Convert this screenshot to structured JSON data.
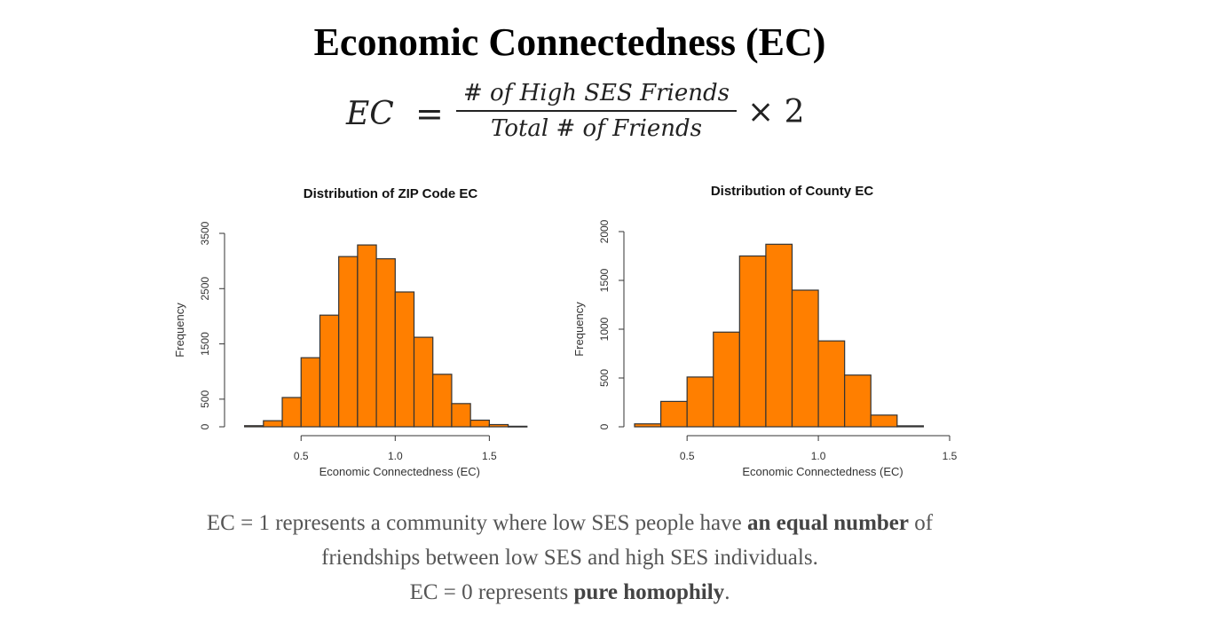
{
  "header": {
    "title": "Economic Connectedness (EC)"
  },
  "formula": {
    "lhs": "EC",
    "equals": "=",
    "numerator": "# of High SES Friends",
    "denominator": "Total # of Friends",
    "multiplier": "× 2"
  },
  "colors": {
    "bar_fill": "#ff7f00",
    "bar_stroke": "#333333"
  },
  "chart_data": [
    {
      "type": "bar",
      "title": "Distribution of ZIP Code EC",
      "xlabel": "Economic Connectedness (EC)",
      "ylabel": "Frequency",
      "xlim": [
        0.15,
        1.8
      ],
      "ylim": [
        0,
        3500
      ],
      "xticks": [
        0.5,
        1.0,
        1.5
      ],
      "xtick_labels": [
        "0.5",
        "1.0",
        "1.5"
      ],
      "yticks": [
        0,
        500,
        1500,
        2500,
        3500
      ],
      "ytick_labels": [
        "0",
        "500",
        "1500",
        "2500",
        "3500"
      ],
      "bin_width": 0.1,
      "bin_starts": [
        0.2,
        0.3,
        0.4,
        0.5,
        0.6,
        0.7,
        0.8,
        0.9,
        1.0,
        1.1,
        1.2,
        1.3,
        1.4,
        1.5,
        1.6
      ],
      "values": [
        20,
        110,
        530,
        1250,
        2020,
        3080,
        3290,
        3040,
        2440,
        1620,
        950,
        420,
        120,
        40,
        10
      ]
    },
    {
      "type": "bar",
      "title": "Distribution of County EC",
      "xlabel": "Economic Connectedness (EC)",
      "ylabel": "Frequency",
      "xlim": [
        0.3,
        1.5
      ],
      "ylim": [
        0,
        2000
      ],
      "xticks": [
        0.5,
        1.0,
        1.5
      ],
      "xtick_labels": [
        "0.5",
        "1.0",
        "1.5"
      ],
      "yticks": [
        0,
        500,
        1000,
        1500,
        2000
      ],
      "ytick_labels": [
        "0",
        "500",
        "1000",
        "1500",
        "2000"
      ],
      "bin_width": 0.1,
      "bin_starts": [
        0.3,
        0.4,
        0.5,
        0.6,
        0.7,
        0.8,
        0.9,
        1.0,
        1.1,
        1.2,
        1.3
      ],
      "values": [
        30,
        260,
        510,
        970,
        1750,
        1870,
        1400,
        880,
        530,
        120,
        10
      ]
    }
  ],
  "caption": {
    "line1_pre": "EC = 1 represents a community where low SES people have ",
    "line1_bold": "an equal number",
    "line1_post": " of",
    "line2": "friendships between low SES and high SES individuals.",
    "line3_pre": "EC = 0 represents ",
    "line3_bold": "pure homophily",
    "line3_post": "."
  }
}
